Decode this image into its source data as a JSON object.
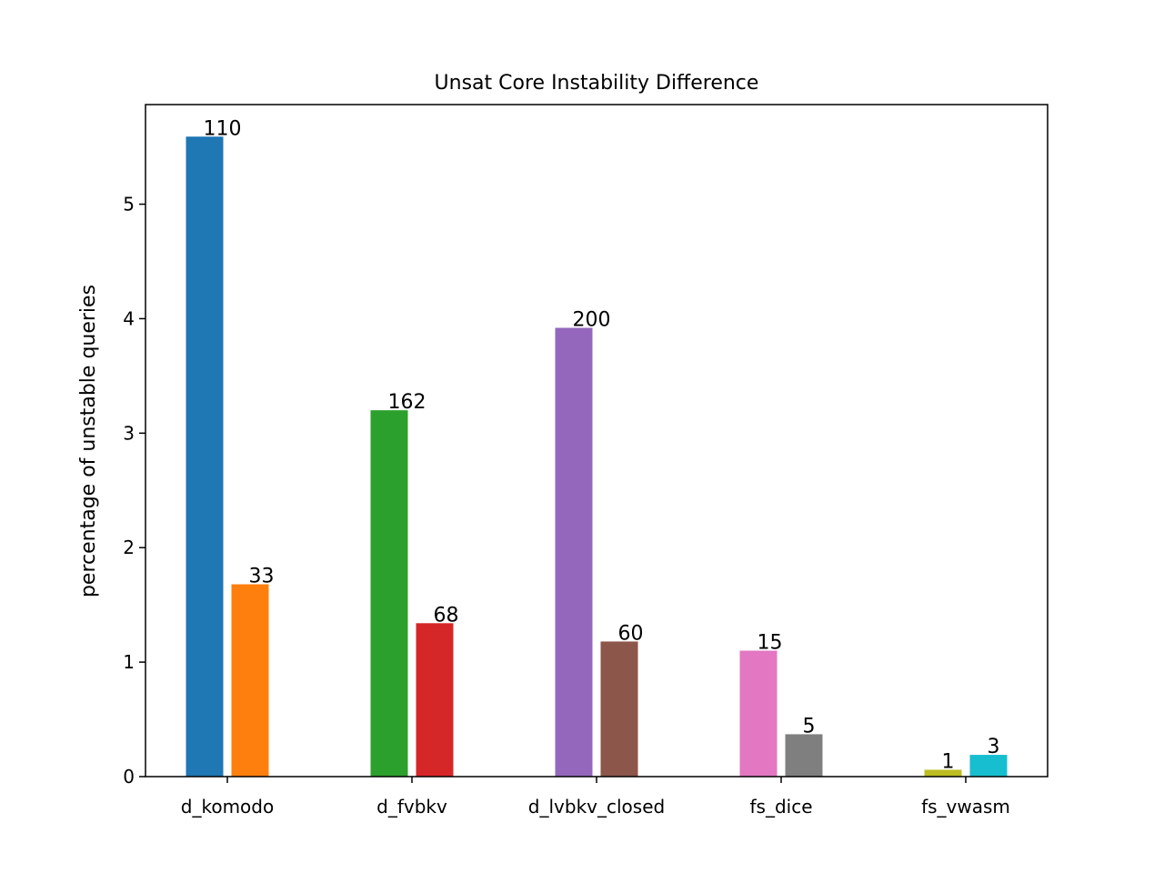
{
  "chart_data": {
    "type": "bar",
    "title": "Unsat Core Instability Difference",
    "xlabel": "",
    "ylabel": "percentage of unstable queries",
    "ylim": [
      0,
      5.87
    ],
    "yticks": [
      0,
      1,
      2,
      3,
      4,
      5
    ],
    "grid": false,
    "legend": "none",
    "categories": [
      "d_komodo",
      "d_fvbkv",
      "d_lvbkv_closed",
      "fs_dice",
      "fs_vwasm"
    ],
    "bars": [
      {
        "category": "d_komodo",
        "value": 5.59,
        "label": "110",
        "color": "#1f77b4"
      },
      {
        "category": "d_komodo",
        "value": 1.68,
        "label": "33",
        "color": "#ff7f0e"
      },
      {
        "category": "d_fvbkv",
        "value": 3.2,
        "label": "162",
        "color": "#2ca02c"
      },
      {
        "category": "d_fvbkv",
        "value": 1.34,
        "label": "68",
        "color": "#d62728"
      },
      {
        "category": "d_lvbkv_closed",
        "value": 3.92,
        "label": "200",
        "color": "#9467bd"
      },
      {
        "category": "d_lvbkv_closed",
        "value": 1.18,
        "label": "60",
        "color": "#8c564b"
      },
      {
        "category": "fs_dice",
        "value": 1.1,
        "label": "15",
        "color": "#e377c2"
      },
      {
        "category": "fs_dice",
        "value": 0.37,
        "label": "5",
        "color": "#7f7f7f"
      },
      {
        "category": "fs_vwasm",
        "value": 0.06,
        "label": "1",
        "color": "#bcbd22"
      },
      {
        "category": "fs_vwasm",
        "value": 0.19,
        "label": "3",
        "color": "#17becf"
      }
    ]
  }
}
